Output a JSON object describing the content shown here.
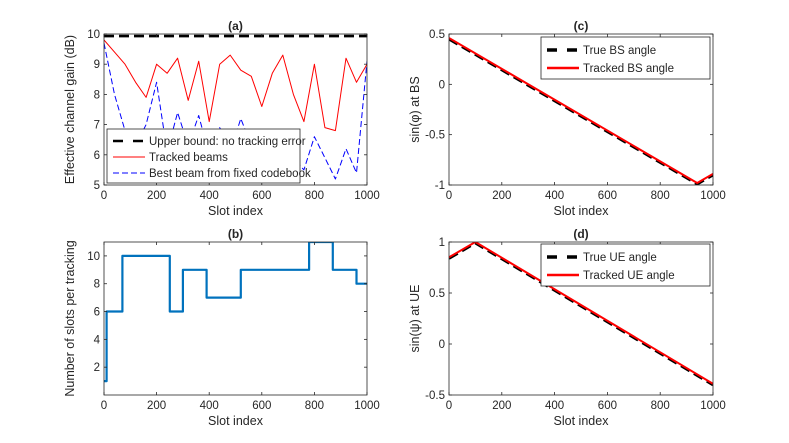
{
  "chart_data": [
    {
      "id": "a",
      "type": "line",
      "title": "(a)",
      "xlabel": "Slot index",
      "ylabel": "Effective channel gain (dB)",
      "xlim": [
        0,
        1000
      ],
      "ylim": [
        5,
        10
      ],
      "xticks": [
        0,
        200,
        400,
        600,
        800,
        1000
      ],
      "yticks": [
        5,
        6,
        7,
        8,
        9,
        10
      ],
      "grid": false,
      "legend_position": "bottom-right",
      "series": [
        {
          "name": "Upper bound: no tracking error",
          "color": "#000000",
          "style": "dashed",
          "x": [
            0,
            1000
          ],
          "y": [
            9.93,
            9.93
          ]
        },
        {
          "name": "Tracked beams",
          "color": "#ff0000",
          "style": "solid",
          "x": [
            0,
            40,
            80,
            120,
            160,
            200,
            240,
            280,
            320,
            360,
            400,
            440,
            480,
            520,
            560,
            600,
            640,
            680,
            720,
            760,
            800,
            840,
            880,
            920,
            960,
            1000
          ],
          "y": [
            9.8,
            9.4,
            9.0,
            8.4,
            7.9,
            9.0,
            8.7,
            9.2,
            7.8,
            9.1,
            7.1,
            9.0,
            9.3,
            8.8,
            8.6,
            7.6,
            8.7,
            9.3,
            8.0,
            7.1,
            9.0,
            6.9,
            6.8,
            9.2,
            8.4,
            9.0
          ]
        },
        {
          "name": "Best beam from fixed codebook",
          "color": "#0000ff",
          "style": "dashed",
          "x": [
            0,
            40,
            80,
            120,
            160,
            200,
            240,
            280,
            320,
            360,
            400,
            440,
            480,
            520,
            560,
            600,
            640,
            680,
            720,
            760,
            800,
            840,
            880,
            920,
            960,
            1000
          ],
          "y": [
            9.7,
            8.0,
            6.8,
            6.3,
            7.0,
            8.4,
            6.1,
            7.4,
            6.3,
            7.3,
            6.0,
            6.9,
            6.1,
            7.2,
            6.3,
            6.7,
            5.7,
            6.3,
            5.9,
            5.5,
            6.6,
            5.9,
            5.2,
            6.2,
            5.4,
            9.1
          ]
        }
      ]
    },
    {
      "id": "b",
      "type": "line",
      "title": "(b)",
      "xlabel": "Slot index",
      "ylabel": "Number of slots per tracking",
      "xlim": [
        0,
        1000
      ],
      "ylim": [
        0,
        11
      ],
      "xticks": [
        0,
        200,
        400,
        600,
        800,
        1000
      ],
      "yticks": [
        2,
        4,
        6,
        8,
        10
      ],
      "grid": false,
      "series": [
        {
          "name": "",
          "color": "#0072bd",
          "style": "step",
          "x": [
            0,
            10,
            10,
            70,
            70,
            250,
            250,
            300,
            300,
            390,
            390,
            520,
            520,
            780,
            780,
            870,
            870,
            960,
            960,
            1000
          ],
          "y": [
            1,
            1,
            6,
            6,
            10,
            10,
            6,
            6,
            9,
            9,
            7,
            7,
            9,
            9,
            11,
            11,
            9,
            9,
            8,
            8
          ]
        }
      ]
    },
    {
      "id": "c",
      "type": "line",
      "title": "(c)",
      "xlabel": "Slot index",
      "ylabel": "sin(φ) at BS",
      "xlim": [
        0,
        1000
      ],
      "ylim": [
        -1,
        0.5
      ],
      "xticks": [
        0,
        200,
        400,
        600,
        800,
        1000
      ],
      "yticks": [
        -1,
        -0.5,
        0,
        0.5
      ],
      "grid": false,
      "legend_position": "top-right",
      "series": [
        {
          "name": "True BS angle",
          "color": "#000000",
          "style": "dashed",
          "x": [
            0,
            940,
            1000
          ],
          "y": [
            0.45,
            -0.99,
            -0.9
          ]
        },
        {
          "name": "Tracked BS angle",
          "color": "#ff0000",
          "style": "solid",
          "x": [
            0,
            940,
            1000
          ],
          "y": [
            0.46,
            -0.98,
            -0.89
          ]
        }
      ]
    },
    {
      "id": "d",
      "type": "line",
      "title": "(d)",
      "xlabel": "Slot index",
      "ylabel": "sin(ψ) at UE",
      "xlim": [
        0,
        1000
      ],
      "ylim": [
        -0.5,
        1
      ],
      "xticks": [
        0,
        200,
        400,
        600,
        800,
        1000
      ],
      "yticks": [
        -0.5,
        0,
        0.5,
        1
      ],
      "grid": false,
      "legend_position": "top-right",
      "series": [
        {
          "name": "True UE angle",
          "color": "#000000",
          "style": "dashed",
          "x": [
            0,
            100,
            1000
          ],
          "y": [
            0.84,
            0.99,
            -0.4
          ]
        },
        {
          "name": "Tracked UE angle",
          "color": "#ff0000",
          "style": "solid",
          "x": [
            0,
            100,
            1000
          ],
          "y": [
            0.85,
            1.0,
            -0.39
          ]
        }
      ]
    }
  ]
}
